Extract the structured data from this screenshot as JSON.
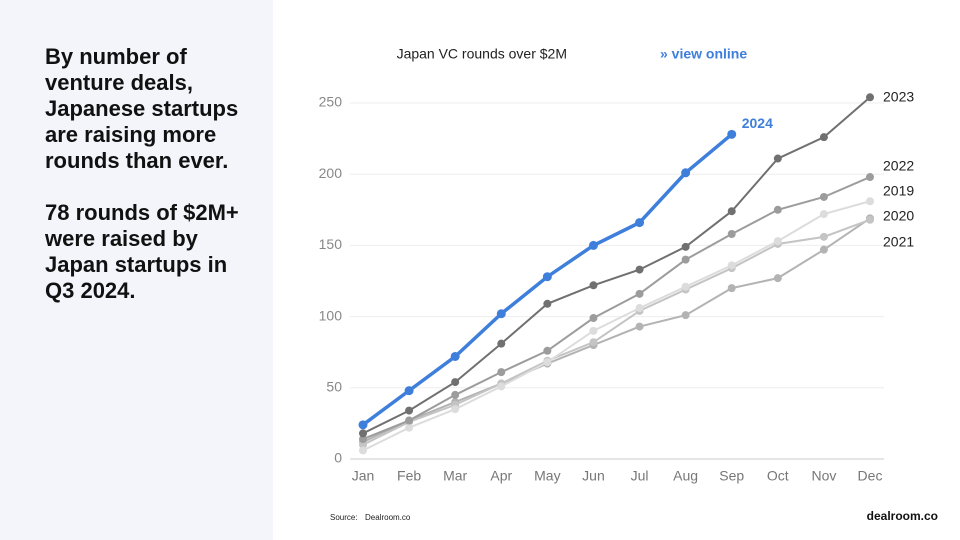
{
  "left_panel": {
    "paragraphs": [
      "By number of venture deals, Japanese startups are raising more rounds than ever.",
      "78 rounds of $2M+ were raised by Japan startups in Q3 2024."
    ]
  },
  "chart_data": {
    "type": "line",
    "title": "Japan VC rounds over $2M",
    "link": "» view online",
    "categories": [
      "Jan",
      "Feb",
      "Mar",
      "Apr",
      "May",
      "Jun",
      "Jul",
      "Aug",
      "Sep",
      "Oct",
      "Nov",
      "Dec"
    ],
    "ylim": [
      0,
      260
    ],
    "yticks": [
      0,
      50,
      100,
      150,
      200,
      250
    ],
    "grid": true,
    "series": [
      {
        "name": "2021",
        "color": "#b3b3b3",
        "values": [
          12,
          27,
          40,
          53,
          67,
          80,
          93,
          101,
          120,
          127,
          147,
          169
        ]
      },
      {
        "name": "2020",
        "color": "#c4c4c4",
        "values": [
          10,
          26,
          38,
          53,
          69,
          82,
          104,
          119,
          134,
          151,
          156,
          168
        ]
      },
      {
        "name": "2019",
        "color": "#dcdcdc",
        "values": [
          6,
          22,
          35,
          51,
          68,
          90,
          106,
          121,
          136,
          153,
          172,
          181
        ]
      },
      {
        "name": "2022",
        "color": "#9c9c9c",
        "values": [
          14,
          27,
          45,
          61,
          76,
          99,
          116,
          140,
          158,
          175,
          184,
          198
        ]
      },
      {
        "name": "2023",
        "color": "#707070",
        "values": [
          18,
          34,
          54,
          81,
          109,
          122,
          133,
          149,
          174,
          211,
          226,
          254
        ]
      },
      {
        "name": "2024",
        "color": "#3f7fdc",
        "values": [
          24,
          48,
          72,
          102,
          128,
          150,
          166,
          201,
          228,
          null,
          null,
          null
        ]
      }
    ]
  },
  "footer": {
    "source_label": "Source:",
    "source": "Dealroom.co",
    "brand": "dealroom.co"
  }
}
